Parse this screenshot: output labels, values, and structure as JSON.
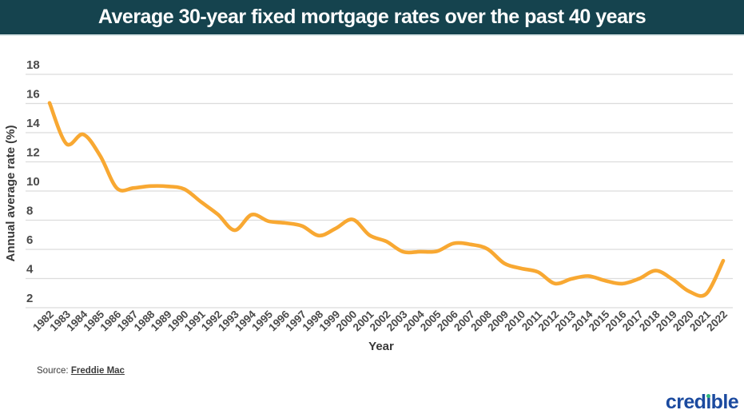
{
  "header": {
    "title": "Average 30-year fixed mortgage rates over the past 40 years"
  },
  "chart_data": {
    "type": "line",
    "title": "Average 30-year fixed mortgage rates over the past 40 years",
    "xlabel": "Year",
    "ylabel": "Annual average rate (%)",
    "x": [
      1982,
      1983,
      1984,
      1985,
      1986,
      1987,
      1988,
      1989,
      1990,
      1991,
      1992,
      1993,
      1994,
      1995,
      1996,
      1997,
      1998,
      1999,
      2000,
      2001,
      2002,
      2003,
      2004,
      2005,
      2006,
      2007,
      2008,
      2009,
      2010,
      2011,
      2012,
      2013,
      2014,
      2015,
      2016,
      2017,
      2018,
      2019,
      2020,
      2021,
      2022
    ],
    "series": [
      {
        "name": "Average 30-year fixed mortgage rate (%)",
        "values": [
          16.04,
          13.24,
          13.88,
          12.43,
          10.19,
          10.21,
          10.34,
          10.32,
          10.13,
          9.25,
          8.39,
          7.31,
          8.38,
          7.93,
          7.81,
          7.6,
          6.94,
          7.44,
          8.05,
          6.97,
          6.54,
          5.83,
          5.84,
          5.87,
          6.41,
          6.34,
          6.03,
          5.04,
          4.69,
          4.45,
          3.66,
          3.98,
          4.17,
          3.85,
          3.65,
          3.99,
          4.54,
          3.94,
          3.1,
          2.96,
          5.22
        ]
      }
    ],
    "ylim": [
      2,
      18
    ],
    "ytick_step": 2,
    "grid": "horizontal",
    "legend": "none",
    "smooth": true,
    "line_color": "#f8a832"
  },
  "footer": {
    "source_label": "Source:",
    "source_link_text": "Freddie Mac",
    "logo": {
      "text": "credible",
      "pre": "cred",
      "dotless_i": "ı",
      "post": "ble"
    }
  },
  "colors": {
    "header_bg": "#15434e",
    "header_border": "#d9e5e7",
    "grid": "#dcdcdc",
    "tick_text": "#4a4a4a",
    "axis_title": "#383838",
    "line": "#f8a832",
    "source_text": "#3b3b3b",
    "logo_blue": "#1b4a9f",
    "logo_green": "#2eb77d",
    "background": "#ffffff"
  }
}
